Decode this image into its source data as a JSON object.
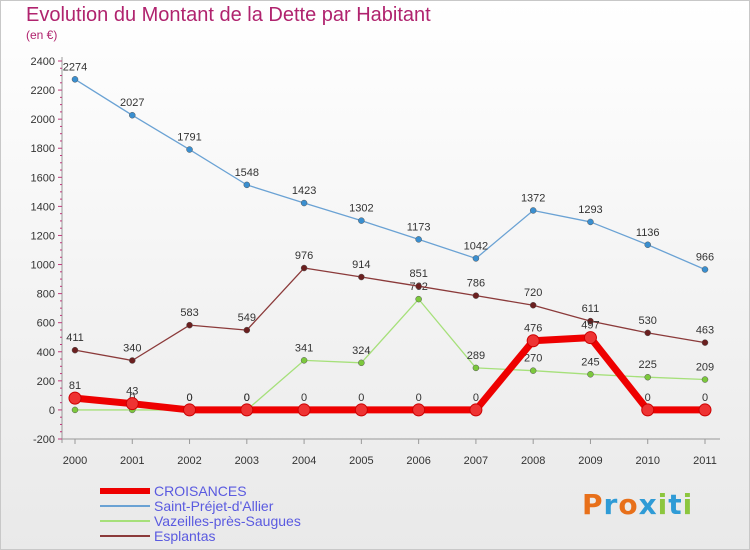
{
  "title": "Evolution du Montant de la Dette par Habitant",
  "subtitle": "(en €)",
  "logo": {
    "text": "Proxiti",
    "colors": [
      "#e8701a",
      "#2f9bd6",
      "#e8701a",
      "#2f9bd6",
      "#8cc63e",
      "#2f9bd6",
      "#8cc63e"
    ]
  },
  "chart_data": {
    "type": "line",
    "x": [
      "2000",
      "2001",
      "2002",
      "2003",
      "2004",
      "2005",
      "2006",
      "2007",
      "2008",
      "2009",
      "2010",
      "2011"
    ],
    "ylim": [
      -200,
      2400
    ],
    "yticks": [
      -200,
      0,
      200,
      400,
      600,
      800,
      1000,
      1200,
      1400,
      1600,
      1800,
      2000,
      2200,
      2400
    ],
    "grid": false,
    "legend_position": "bottom-left",
    "series": [
      {
        "name": "CROISANCES",
        "color": "#ee0000",
        "marker": "#ee3333",
        "emphasis": true,
        "values": [
          81,
          43,
          0,
          0,
          0,
          0,
          0,
          0,
          476,
          497,
          0,
          0
        ]
      },
      {
        "name": "Saint-Préjet-d'Allier",
        "color": "#6aa2d4",
        "marker": "#3a8fd0",
        "values": [
          2274,
          2027,
          1791,
          1548,
          1423,
          1302,
          1173,
          1042,
          1372,
          1293,
          1136,
          966
        ]
      },
      {
        "name": "Vazeilles-près-Saugues",
        "color": "#a6e07a",
        "marker": "#7cc83c",
        "values": [
          0,
          0,
          0,
          0,
          341,
          324,
          762,
          289,
          270,
          245,
          225,
          209
        ]
      },
      {
        "name": "Esplantas",
        "color": "#8b3a3a",
        "marker": "#6b1f1f",
        "values": [
          411,
          340,
          583,
          549,
          976,
          914,
          851,
          786,
          720,
          611,
          530,
          463
        ]
      }
    ]
  }
}
